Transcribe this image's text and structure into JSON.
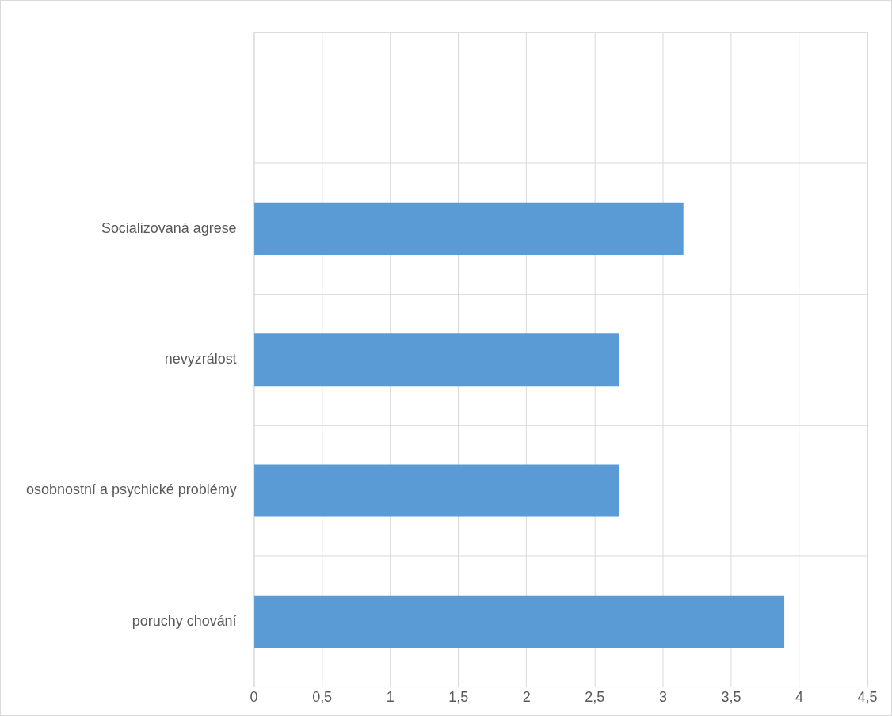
{
  "chart_data": {
    "type": "bar",
    "orientation": "horizontal",
    "categories": [
      null,
      "Socializovaná agrese",
      "nevyzrálost",
      "osobnostní a psychické problémy",
      "poruchy chování"
    ],
    "values": [
      null,
      3.15,
      2.68,
      2.68,
      3.89
    ],
    "color": "#5b9bd5",
    "xlim": [
      0,
      4.5
    ],
    "xticks": [
      0,
      {
        "value": 0.5,
        "label": "0,5"
      },
      1,
      {
        "value": 1.5,
        "label": "1,5"
      },
      2,
      {
        "value": 2.5,
        "label": "2,5"
      },
      3,
      {
        "value": 3.5,
        "label": "3,5"
      },
      4,
      {
        "value": 4.5,
        "label": "4,5"
      }
    ],
    "grid": true,
    "legend": false
  }
}
